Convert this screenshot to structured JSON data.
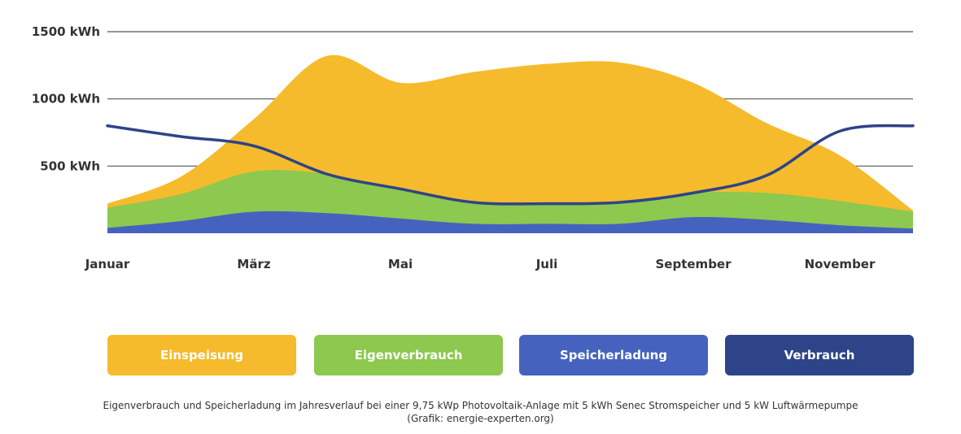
{
  "chart_data": {
    "type": "area",
    "title": "",
    "xlabel": "",
    "ylabel": "",
    "ylim": [
      0,
      1500
    ],
    "x": [
      0,
      1,
      2,
      3,
      4,
      5,
      6,
      7,
      8,
      9,
      10,
      11
    ],
    "x_tick_labels": [
      "Januar",
      "März",
      "Mai",
      "Juli",
      "September",
      "November"
    ],
    "y_tick_labels": [
      "1500 kWh",
      "1000 kWh",
      "500 kWh"
    ],
    "y_ticks": [
      1500,
      1000,
      500
    ],
    "grid": true,
    "series": [
      {
        "name": "Einspeisung",
        "kind": "area",
        "color": "#F5BB2C",
        "values": [
          220,
          420,
          850,
          1320,
          1120,
          1200,
          1260,
          1270,
          1120,
          820,
          580,
          170
        ]
      },
      {
        "name": "Eigenverbrauch",
        "kind": "area",
        "color": "#8DC84F",
        "values": [
          190,
          290,
          460,
          440,
          320,
          220,
          210,
          220,
          300,
          300,
          240,
          160
        ]
      },
      {
        "name": "Speicherladung",
        "kind": "area",
        "color": "#4563BE",
        "values": [
          40,
          90,
          160,
          150,
          110,
          70,
          70,
          70,
          120,
          100,
          60,
          35
        ]
      },
      {
        "name": "Verbrauch",
        "kind": "line",
        "color": "#2E4488",
        "values": [
          800,
          720,
          650,
          440,
          330,
          230,
          220,
          230,
          300,
          430,
          760,
          800
        ]
      }
    ],
    "legend": [
      "Einspeisung",
      "Eigenverbrauch",
      "Speicherladung",
      "Verbrauch"
    ],
    "legend_position": "bottom"
  },
  "caption": {
    "line1": "Eigenverbrauch und Speicherladung im Jahresverlauf bei einer 9,75 kWp Photovoltaik-Anlage mit 5 kWh Senec Stromspeicher und 5 kW Luftwärmepumpe",
    "line2": "(Grafik: energie-experten.org)"
  }
}
